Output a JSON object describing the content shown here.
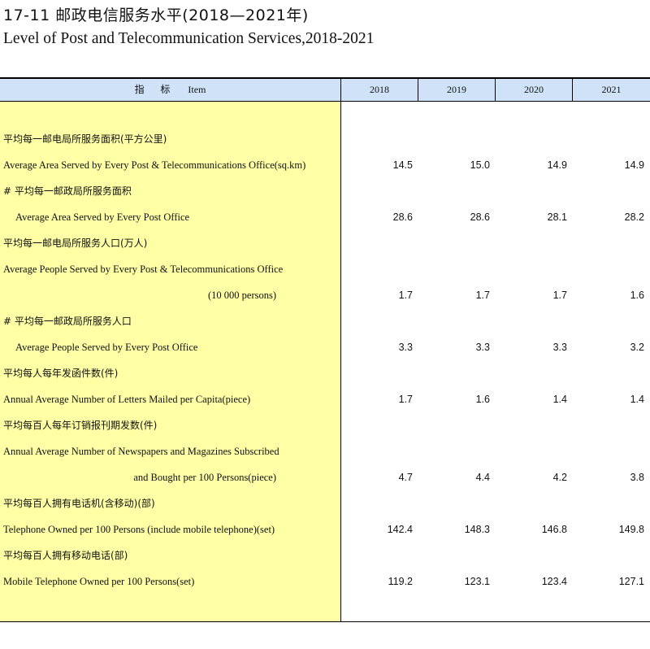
{
  "title_cn": "17-11    邮政电信服务水平(2018—2021年)",
  "title_en": "Level of Post and Telecommunication Services,2018-2021",
  "header": {
    "item_cn": "指  标",
    "item_en": "Item",
    "years": [
      "2018",
      "2019",
      "2020",
      "2021"
    ]
  },
  "rows": [
    {
      "label": "平均每一邮电局所服务面积(平方公里)",
      "style": "cn",
      "values": []
    },
    {
      "label": "Average Area Served by Every Post & Telecommunications Office(sq.km)",
      "style": "en",
      "values": [
        "14.5",
        "15.0",
        "14.9",
        "14.9"
      ]
    },
    {
      "label": "# 平均每一邮政局所服务面积",
      "style": "cn",
      "values": []
    },
    {
      "label": "Average Area Served by Every Post Office",
      "style": "en indent",
      "values": [
        "28.6",
        "28.6",
        "28.1",
        "28.2"
      ]
    },
    {
      "label": "平均每一邮电局所服务人口(万人)",
      "style": "cn",
      "values": []
    },
    {
      "label": "Average People Served by Every Post & Telecommunications Office",
      "style": "en",
      "values": []
    },
    {
      "label": "(10 000 persons)",
      "style": "en right",
      "values": [
        "1.7",
        "1.7",
        "1.7",
        "1.6"
      ]
    },
    {
      "label": "# 平均每一邮政局所服务人口",
      "style": "cn",
      "values": []
    },
    {
      "label": "Average People Served by Every Post Office",
      "style": "en indent",
      "values": [
        "3.3",
        "3.3",
        "3.3",
        "3.2"
      ]
    },
    {
      "label": "平均每人每年发函件数(件)",
      "style": "cn",
      "values": []
    },
    {
      "label": "Annual Average Number of Letters Mailed per Capita(piece)",
      "style": "en",
      "values": [
        "1.7",
        "1.6",
        "1.4",
        "1.4"
      ]
    },
    {
      "label": "平均每百人每年订销报刊期发数(件)",
      "style": "cn",
      "values": []
    },
    {
      "label": "Annual Average Number of Newspapers and Magazines Subscribed",
      "style": "en",
      "values": []
    },
    {
      "label": "and Bought per 100 Persons(piece)",
      "style": "en right",
      "values": [
        "4.7",
        "4.4",
        "4.2",
        "3.8"
      ]
    },
    {
      "label": "平均每百人拥有电话机(含移动)(部)",
      "style": "cn",
      "values": []
    },
    {
      "label": "Telephone Owned per 100 Persons (include mobile telephone)(set)",
      "style": "en",
      "values": [
        "142.4",
        "148.3",
        "146.8",
        "149.8"
      ]
    },
    {
      "label": "平均每百人拥有移动电话(部)",
      "style": "cn",
      "values": []
    },
    {
      "label": "Mobile Telephone Owned per 100 Persons(set)",
      "style": "en",
      "values": [
        "119.2",
        "123.1",
        "123.4",
        "127.1"
      ]
    }
  ]
}
